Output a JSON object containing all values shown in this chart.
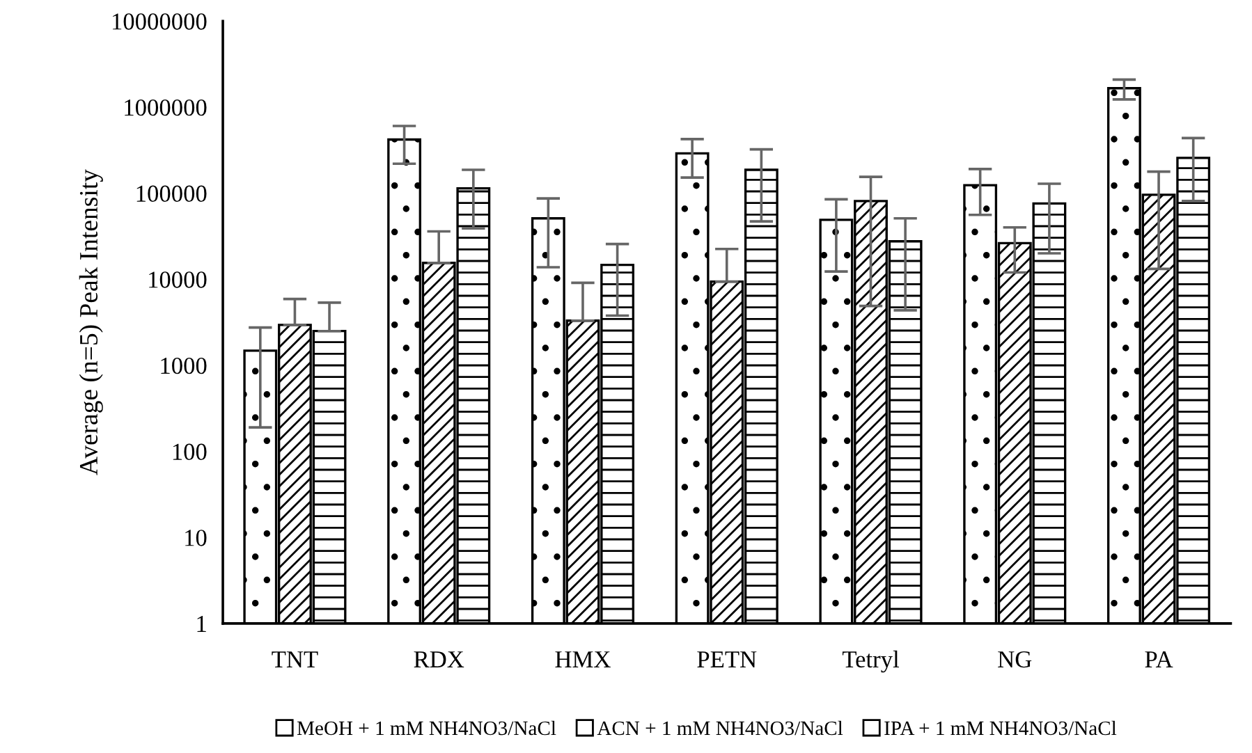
{
  "chart_data": {
    "type": "bar",
    "ylabel": "Average (n=5) Peak Intensity",
    "categories": [
      "TNT",
      "RDX",
      "HMX",
      "PETN",
      "Tetryl",
      "NG",
      "PA"
    ],
    "series": [
      {
        "name": "MeOH + 1 mM NH4NO3/NaCl",
        "color": "#ffffff",
        "values": [
          1480,
          420000,
          51000,
          290000,
          49000,
          124000,
          1660000
        ],
        "errors": [
          [
            190,
            2750
          ],
          [
            220000,
            605000
          ],
          [
            13800,
            87000
          ],
          [
            152000,
            425000
          ],
          [
            12300,
            85000
          ],
          [
            56000,
            191000
          ],
          [
            1230000,
            2090000
          ]
        ]
      },
      {
        "name": "ACN + 1 mM NH4NO3/NaCl",
        "color": "#ffffff",
        "values": [
          2950,
          15500,
          3300,
          9400,
          81000,
          26300,
          96000
        ],
        "errors": [
          [
            2950,
            5900
          ],
          [
            15500,
            36000
          ],
          [
            3300,
            9100
          ],
          [
            9400,
            22500
          ],
          [
            4900,
            155000
          ],
          [
            12000,
            40000
          ],
          [
            13200,
            178000
          ]
        ]
      },
      {
        "name": "IPA + 1 mM NH4NO3/NaCl",
        "color": "#ffffff",
        "values": [
          2500,
          114000,
          14700,
          187000,
          27600,
          76000,
          257000
        ],
        "errors": [
          [
            2500,
            5350
          ],
          [
            39000,
            187000
          ],
          [
            3780,
            25700
          ],
          [
            47000,
            323000
          ],
          [
            4360,
            51000
          ],
          [
            20000,
            129000
          ],
          [
            81000,
            437000
          ]
        ]
      }
    ],
    "log": true,
    "ylim": [
      1,
      10000000
    ],
    "yticks": [
      1,
      10,
      100,
      1000,
      10000,
      100000,
      1000000,
      10000000
    ],
    "grid": false,
    "legend": "bottom"
  }
}
